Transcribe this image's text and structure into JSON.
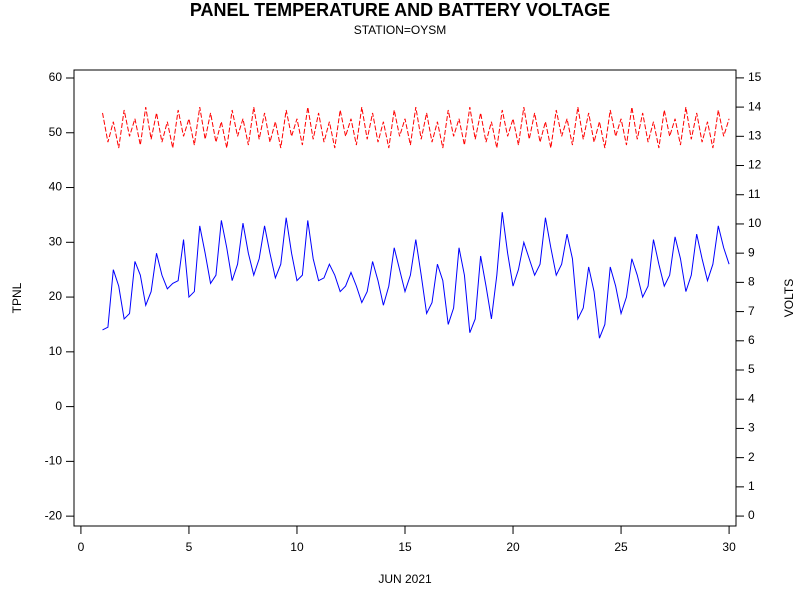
{
  "chart_data": {
    "type": "line",
    "title": "PANEL TEMPERATURE AND BATTERY VOLTAGE",
    "subtitle": "STATION=OYSM",
    "x_label": "JUN 2021",
    "y_label": "TPNL",
    "y2_label": "VOLTS",
    "x": [
      1,
      1.25,
      1.5,
      1.75,
      2,
      2.25,
      2.5,
      2.75,
      3,
      3.25,
      3.5,
      3.75,
      4,
      4.25,
      4.5,
      4.75,
      5,
      5.25,
      5.5,
      5.75,
      6,
      6.25,
      6.5,
      6.75,
      7,
      7.25,
      7.5,
      7.75,
      8,
      8.25,
      8.5,
      8.75,
      9,
      9.25,
      9.5,
      9.75,
      10,
      10.25,
      10.5,
      10.75,
      11,
      11.25,
      11.5,
      11.75,
      12,
      12.25,
      12.5,
      12.75,
      13,
      13.25,
      13.5,
      13.75,
      14,
      14.25,
      14.5,
      14.75,
      15,
      15.25,
      15.5,
      15.75,
      16,
      16.25,
      16.5,
      16.75,
      17,
      17.25,
      17.5,
      17.75,
      18,
      18.25,
      18.5,
      18.75,
      19,
      19.25,
      19.5,
      19.75,
      20,
      20.25,
      20.5,
      20.75,
      21,
      21.25,
      21.5,
      21.75,
      22,
      22.25,
      22.5,
      22.75,
      23,
      23.25,
      23.5,
      23.75,
      24,
      24.25,
      24.5,
      24.75,
      25,
      25.25,
      25.5,
      25.75,
      26,
      26.25,
      26.5,
      26.75,
      27,
      27.25,
      27.5,
      27.75,
      28,
      28.25,
      28.5,
      28.75,
      29,
      29.25,
      29.5,
      29.75,
      30
    ],
    "series": [
      {
        "name": "TPNL",
        "color": "#0000ff",
        "dashed": false,
        "values": [
          14,
          14.5,
          25,
          22,
          16,
          17,
          26.5,
          24,
          18.5,
          21,
          28,
          24,
          21.5,
          22.5,
          23,
          30.5,
          20,
          21,
          33,
          28,
          22.5,
          24,
          34,
          29,
          23,
          26,
          33.5,
          28,
          24,
          27,
          33,
          28,
          23.5,
          26,
          34.5,
          28,
          23,
          24,
          34,
          27,
          23,
          23.5,
          26,
          24,
          21,
          22,
          24.5,
          22,
          19,
          21,
          26.5,
          23,
          18.5,
          22,
          29,
          25,
          21,
          24,
          30.5,
          24,
          17,
          19,
          26,
          23,
          15,
          18,
          29,
          24,
          13.5,
          16,
          27.5,
          22,
          16,
          24,
          35.5,
          28,
          22,
          25,
          30,
          27,
          24,
          26,
          34.5,
          29,
          24,
          26,
          31.5,
          27,
          16,
          18,
          25.5,
          21,
          12.5,
          15,
          25.5,
          22,
          17,
          20,
          27,
          24,
          20,
          22,
          30.5,
          26,
          22,
          24,
          31,
          27,
          21,
          24,
          31.5,
          27,
          23,
          26,
          33,
          29,
          26
        ]
      },
      {
        "name": "VOLTS",
        "color": "#ff0000",
        "dashed": true,
        "axis": "y2",
        "values": [
          13.8,
          12.8,
          13.5,
          12.6,
          13.9,
          13.0,
          13.6,
          12.7,
          14.0,
          12.9,
          13.8,
          12.8,
          13.5,
          12.6,
          13.9,
          13.0,
          13.6,
          12.7,
          14.0,
          12.9,
          13.8,
          12.8,
          13.5,
          12.6,
          13.9,
          13.0,
          13.6,
          12.7,
          14.0,
          12.9,
          13.8,
          12.8,
          13.5,
          12.6,
          13.9,
          13.0,
          13.6,
          12.7,
          14.0,
          12.9,
          13.8,
          12.8,
          13.5,
          12.6,
          13.9,
          13.0,
          13.6,
          12.7,
          14.0,
          12.9,
          13.8,
          12.8,
          13.5,
          12.6,
          13.9,
          13.0,
          13.6,
          12.7,
          14.0,
          12.9,
          13.8,
          12.8,
          13.5,
          12.6,
          13.9,
          13.0,
          13.6,
          12.7,
          14.0,
          12.9,
          13.8,
          12.8,
          13.5,
          12.6,
          13.9,
          13.0,
          13.6,
          12.7,
          14.0,
          12.9,
          13.8,
          12.8,
          13.5,
          12.6,
          13.9,
          13.0,
          13.6,
          12.7,
          14.0,
          12.9,
          13.8,
          12.8,
          13.5,
          12.6,
          13.9,
          13.0,
          13.6,
          12.7,
          14.0,
          12.9,
          13.8,
          12.8,
          13.5,
          12.6,
          13.9,
          13.0,
          13.6,
          12.7,
          14.0,
          12.9,
          13.8,
          12.8,
          13.5,
          12.6,
          13.9,
          13.0,
          13.6
        ]
      }
    ],
    "xlim": [
      -0.32,
      30.32
    ],
    "xticks": [
      0,
      5,
      10,
      15,
      20,
      25,
      30
    ],
    "ylim": [
      -21.8,
      61.46
    ],
    "yticks": [
      -20,
      -10,
      0,
      10,
      20,
      30,
      40,
      50,
      60
    ],
    "y2lim": [
      -0.34,
      15.27
    ],
    "y2ticks": [
      0,
      1,
      2,
      3,
      4,
      5,
      6,
      7,
      8,
      9,
      10,
      11,
      12,
      13,
      14,
      15
    ],
    "grid": false
  }
}
